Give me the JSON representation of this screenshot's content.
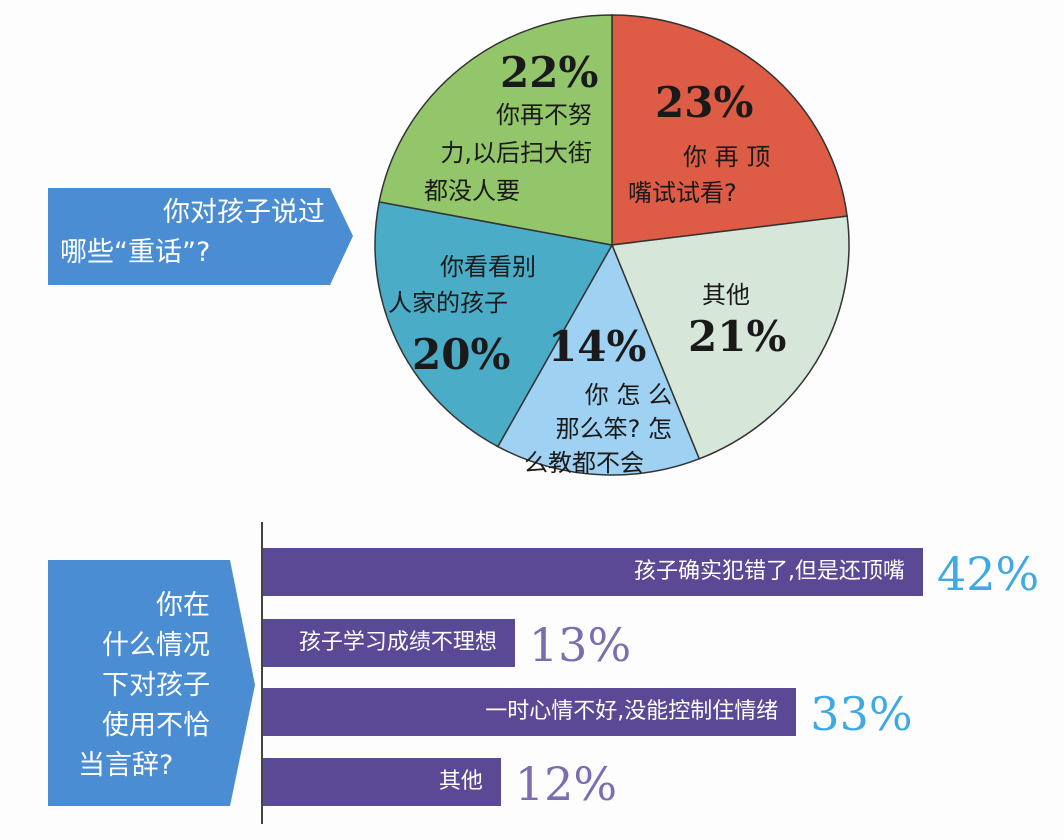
{
  "colors": {
    "question_box": "#4a8dd2",
    "bar": "#5a4994",
    "pct_blue": "#3ea9e2",
    "pct_purple": "#7c6cb0"
  },
  "chart_data": [
    {
      "type": "pie",
      "title": "你对孩子说过哪些“重话”?",
      "slices": [
        {
          "label": "你再顶嘴试试看?",
          "lines": [
            "你 再 顶",
            "嘴试试看?"
          ],
          "value": 23,
          "display": "23%",
          "color": "#de5b45"
        },
        {
          "label": "其他",
          "lines": [
            "其他"
          ],
          "value": 21,
          "display": "21%",
          "color": "#d6e6d8"
        },
        {
          "label": "你怎么那么笨?怎么教都不会",
          "lines": [
            "你 怎 么",
            "那么笨? 怎",
            "么教都不会"
          ],
          "value": 14,
          "display": "14%",
          "color": "#9fd1f2"
        },
        {
          "label": "你看看别人家的孩子",
          "lines": [
            "你看看别",
            "人家的孩子"
          ],
          "value": 20,
          "display": "20%",
          "color": "#4aacc6"
        },
        {
          "label": "你再不努力,以后扫大街都没人要",
          "lines": [
            "你再不努",
            "力,以后扫大街",
            "都没人要"
          ],
          "value": 22,
          "display": "22%",
          "color": "#93c66a"
        }
      ]
    },
    {
      "type": "bar",
      "orientation": "horizontal",
      "title": "你在什么情况下对孩子使用不恰当言辞?",
      "title_lines": [
        "你在",
        "什么情况",
        "下对孩子",
        "使用不恰",
        "当言辞?"
      ],
      "categories": [
        "孩子确实犯错了,但是还顶嘴",
        "孩子学习成绩不理想",
        "一时心情不好,没能控制住情绪",
        "其他"
      ],
      "values": [
        42,
        13,
        33,
        12
      ],
      "display": [
        "42%",
        "13%",
        "33%",
        "12%"
      ],
      "pct_colors": [
        "#3ea9e2",
        "#7c6cb0",
        "#3ea9e2",
        "#7c6cb0"
      ]
    }
  ],
  "pie_question_lines": [
    "你对孩子说过",
    "哪些“重话”?"
  ]
}
